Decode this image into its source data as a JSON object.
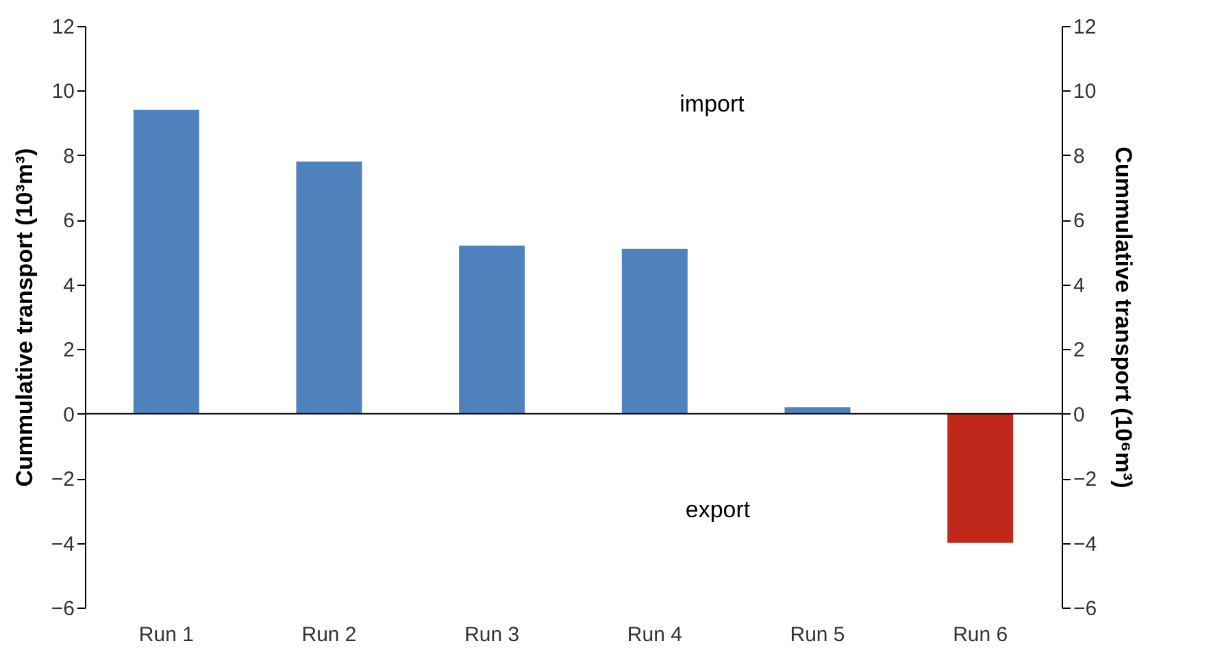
{
  "chart_data": {
    "type": "bar",
    "categories": [
      "Run 1",
      "Run 2",
      "Run 3",
      "Run 4",
      "Run 5",
      "Run 6"
    ],
    "values": [
      9.4,
      7.8,
      5.2,
      5.1,
      0.2,
      -4.0
    ],
    "colors": [
      "#4f81bd",
      "#4f81bd",
      "#4f81bd",
      "#4f81bd",
      "#4f81bd",
      "#c0281c"
    ],
    "ylabel": "Cummulative transport (10³m³)",
    "y2label": "Cummulative transport (10⁶m³)",
    "ylim": [
      -6,
      12
    ],
    "yticks": [
      -6,
      -4,
      -2,
      0,
      2,
      4,
      6,
      8,
      10,
      12
    ],
    "y2lim": [
      -6,
      12
    ],
    "y2ticks": [
      -6,
      -4,
      -2,
      0,
      2,
      4,
      6,
      8,
      10,
      12
    ],
    "annotations": [
      "import",
      "export"
    ]
  }
}
